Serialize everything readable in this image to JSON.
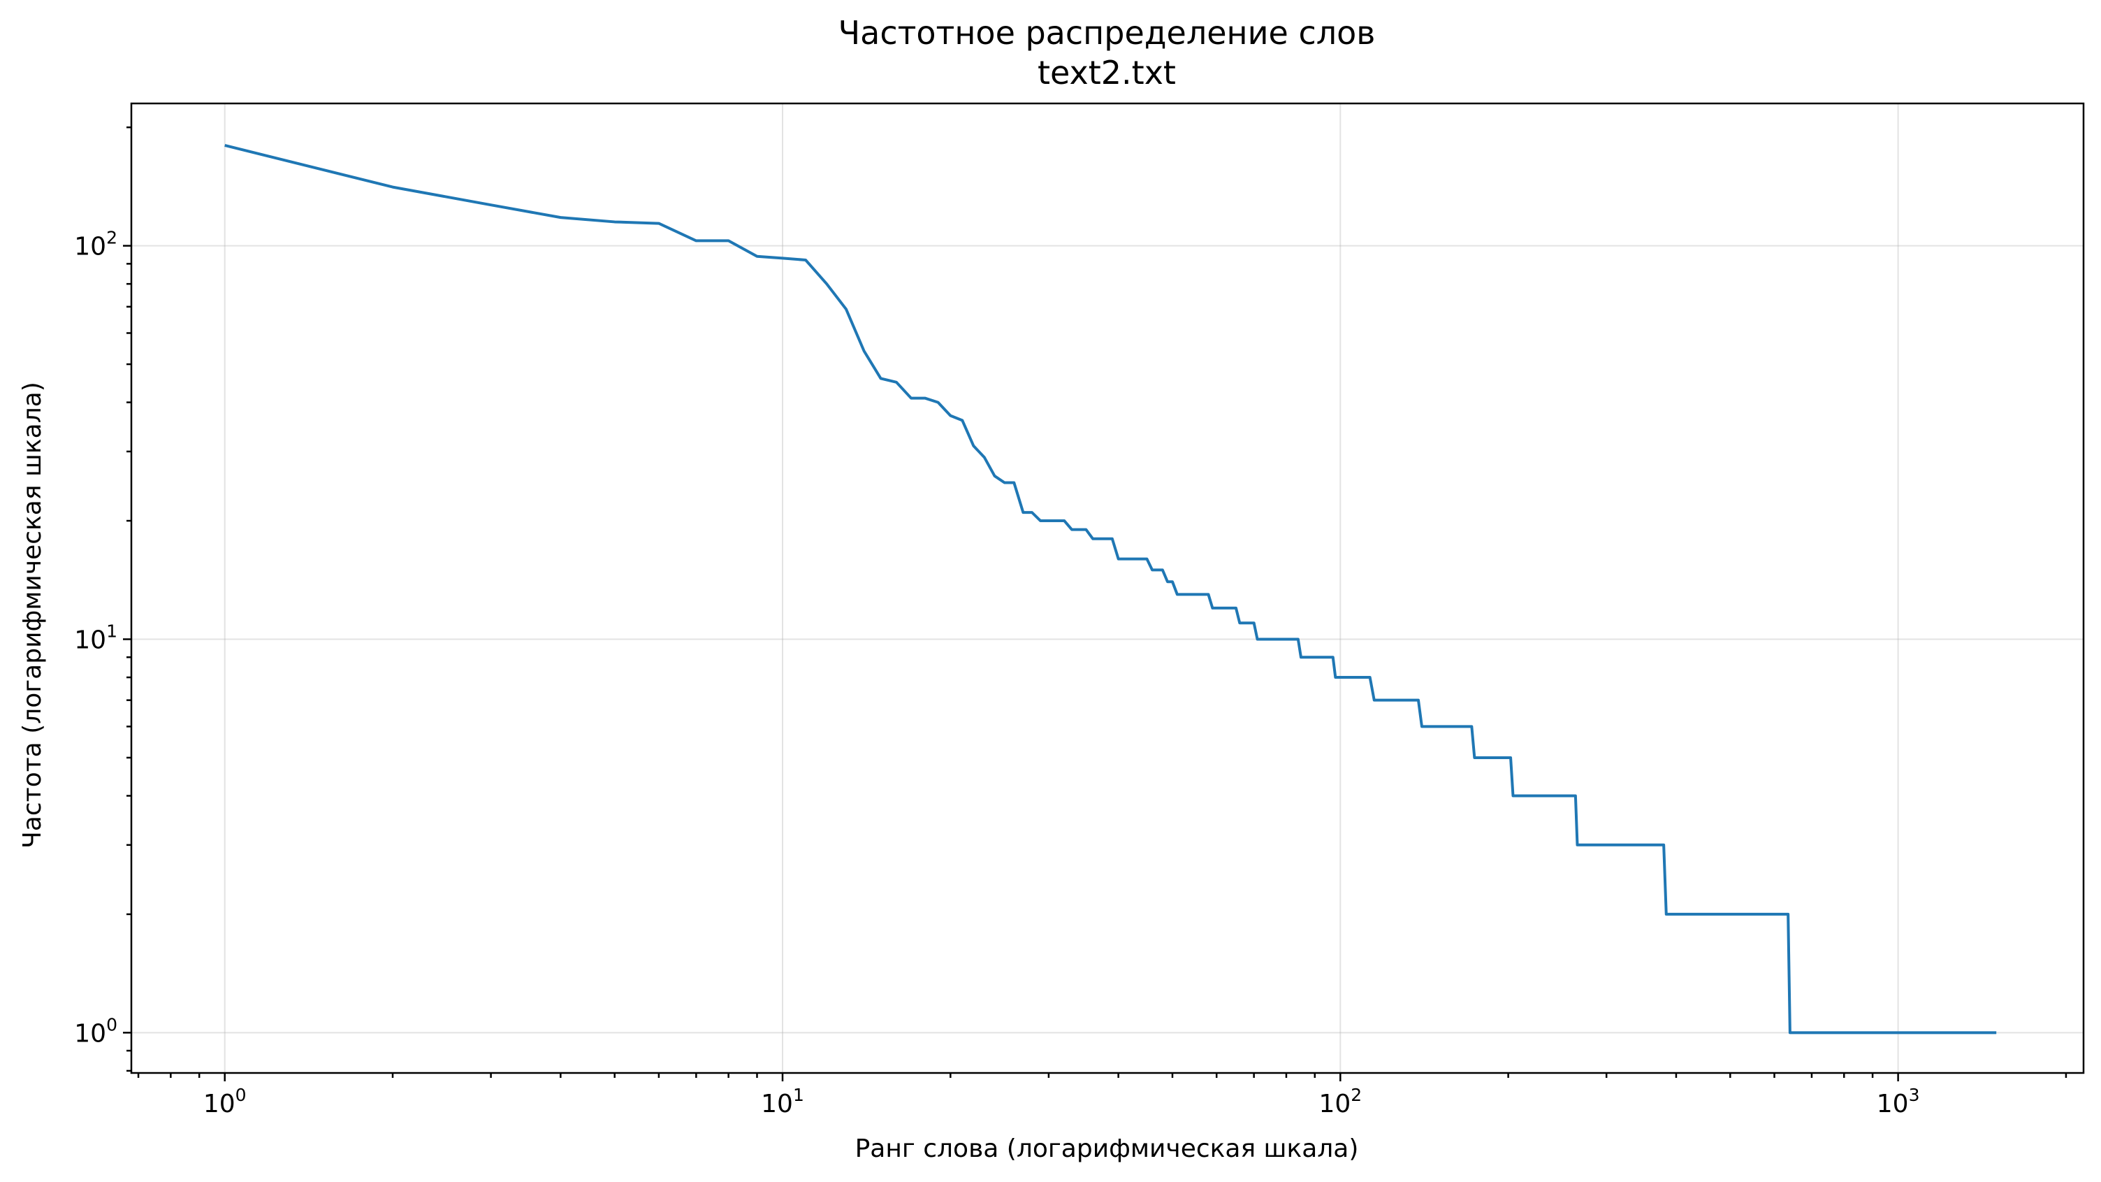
{
  "chart_data": {
    "type": "line",
    "title": "Частотное распределение слов",
    "subtitle": "text2.txt",
    "xlabel": "Ранг слова (логарифмическая шкала)",
    "ylabel": "Частота (логарифмическая шкала)",
    "x_scale": "log",
    "y_scale": "log",
    "xlim": [
      0.68,
      2150
    ],
    "ylim": [
      0.79,
      230
    ],
    "grid": true,
    "x_ticks": [
      {
        "base": "10",
        "exp": "0",
        "value": 1
      },
      {
        "base": "10",
        "exp": "1",
        "value": 10
      },
      {
        "base": "10",
        "exp": "2",
        "value": 100
      },
      {
        "base": "10",
        "exp": "3",
        "value": 1000
      }
    ],
    "y_ticks": [
      {
        "base": "10",
        "exp": "0",
        "value": 1
      },
      {
        "base": "10",
        "exp": "1",
        "value": 10
      },
      {
        "base": "10",
        "exp": "2",
        "value": 100
      }
    ],
    "series": [
      {
        "color": "#1f77b4",
        "points": [
          [
            1,
            180
          ],
          [
            2,
            141
          ],
          [
            3,
            127
          ],
          [
            4,
            118
          ],
          [
            5,
            115
          ],
          [
            6,
            114
          ],
          [
            7,
            103
          ],
          [
            8,
            103
          ],
          [
            9,
            94
          ],
          [
            10,
            93
          ],
          [
            11,
            92
          ],
          [
            12,
            80
          ],
          [
            13,
            69
          ],
          [
            14,
            54
          ],
          [
            15,
            46
          ],
          [
            16,
            45
          ],
          [
            17,
            41
          ],
          [
            18,
            41
          ],
          [
            19,
            40
          ],
          [
            20,
            37
          ],
          [
            21,
            36
          ],
          [
            22,
            31
          ],
          [
            23,
            29
          ],
          [
            24,
            26
          ],
          [
            25,
            25
          ],
          [
            26,
            25
          ],
          [
            27,
            21
          ],
          [
            28,
            21
          ],
          [
            29,
            20
          ],
          [
            31,
            20
          ],
          [
            32,
            20
          ],
          [
            33,
            19
          ],
          [
            35,
            19
          ],
          [
            36,
            18
          ],
          [
            39,
            18
          ],
          [
            40,
            16
          ],
          [
            45,
            16
          ],
          [
            46,
            15
          ],
          [
            48,
            15
          ],
          [
            49,
            14
          ],
          [
            50,
            14
          ],
          [
            51,
            13
          ],
          [
            58,
            13
          ],
          [
            59,
            12
          ],
          [
            65,
            12
          ],
          [
            66,
            11
          ],
          [
            70,
            11
          ],
          [
            71,
            10
          ],
          [
            84,
            10
          ],
          [
            85,
            9
          ],
          [
            97,
            9
          ],
          [
            98,
            8
          ],
          [
            113,
            8
          ],
          [
            115,
            7
          ],
          [
            138,
            7
          ],
          [
            140,
            6
          ],
          [
            172,
            6
          ],
          [
            174,
            5
          ],
          [
            202,
            5
          ],
          [
            204,
            4
          ],
          [
            264,
            4
          ],
          [
            266,
            3
          ],
          [
            380,
            3
          ],
          [
            384,
            2
          ],
          [
            635,
            2
          ],
          [
            640,
            1
          ],
          [
            1500,
            1
          ]
        ]
      }
    ]
  }
}
